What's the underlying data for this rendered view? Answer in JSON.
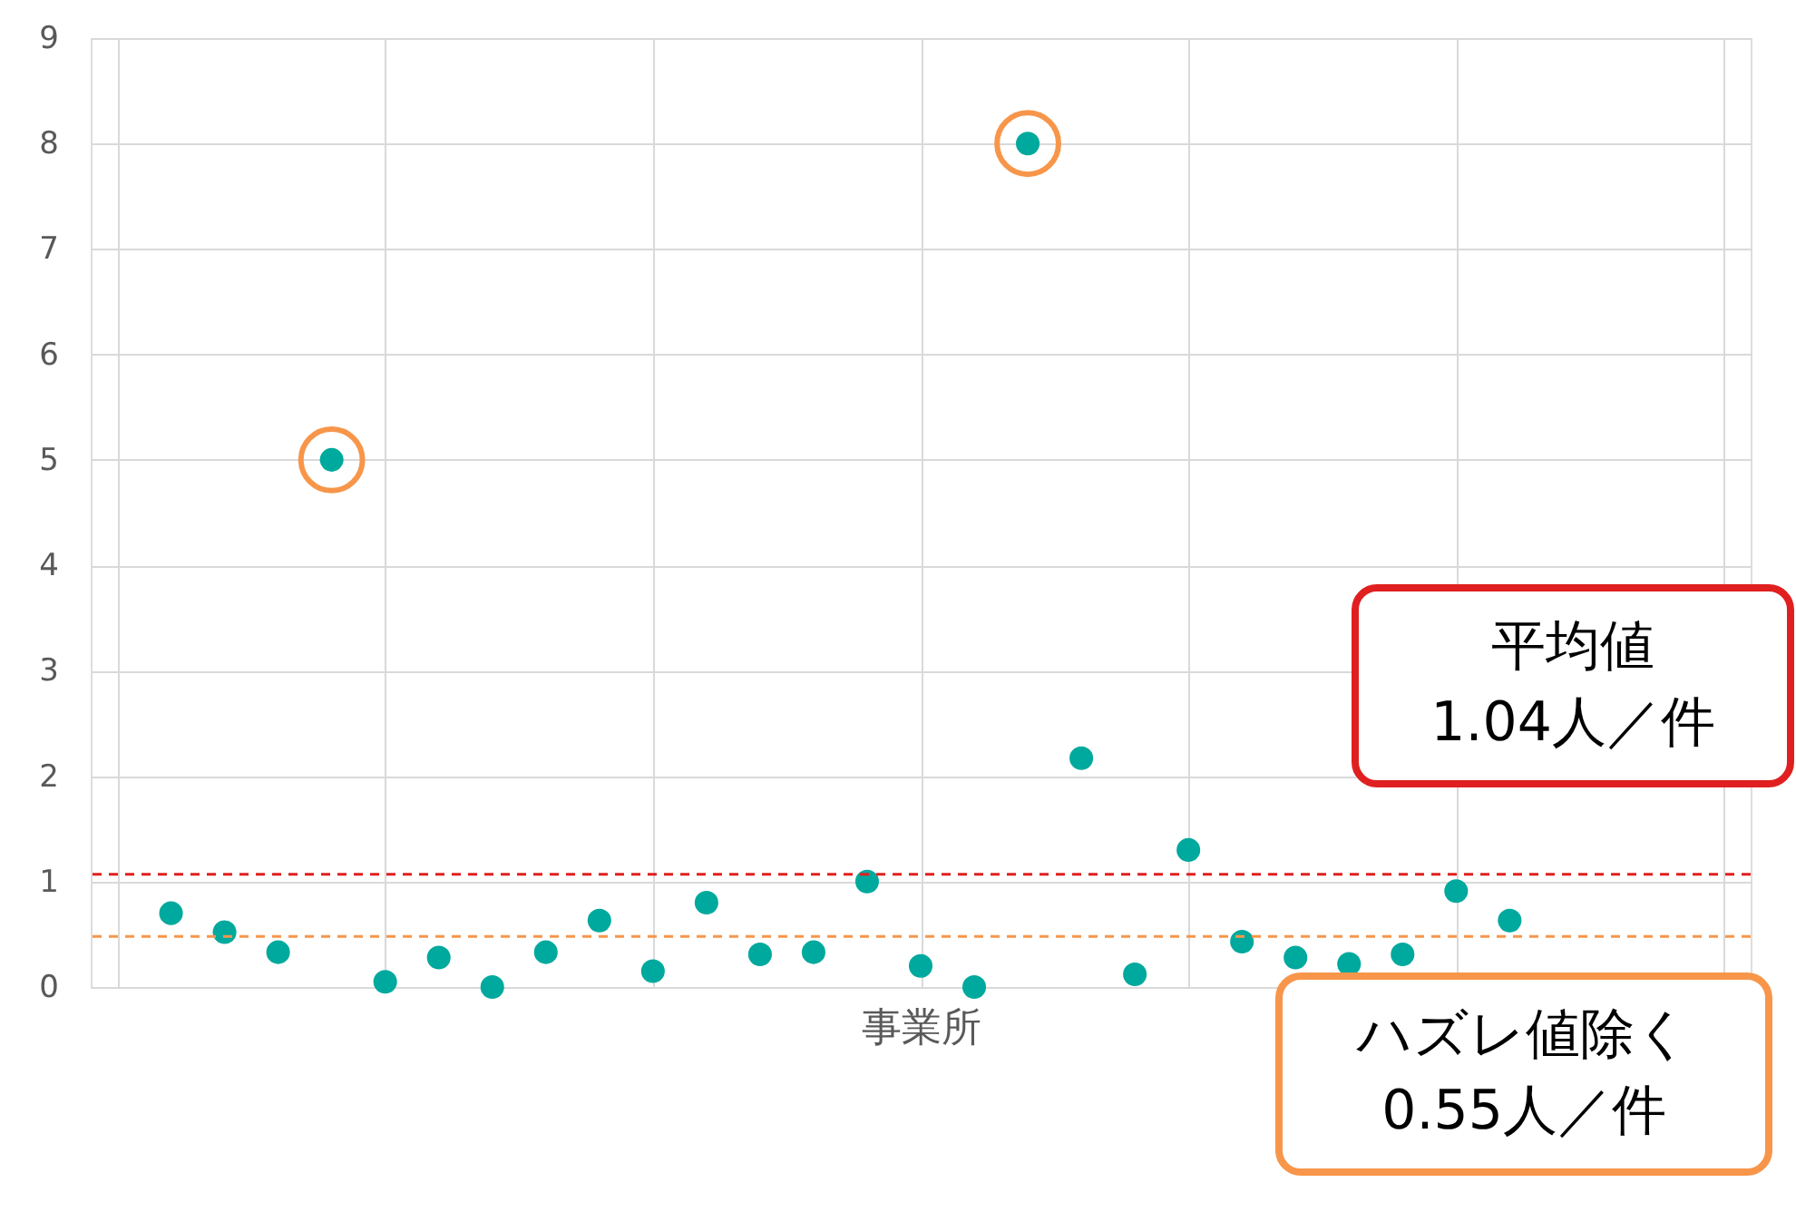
{
  "chart_data": {
    "type": "scatter",
    "xlabel": "事業所",
    "categories": [
      null,
      null,
      null,
      null,
      null,
      null,
      null,
      null,
      null,
      null,
      null,
      null,
      null,
      null,
      null,
      null,
      null,
      null,
      null,
      null,
      null,
      null,
      null,
      null,
      null,
      null,
      null,
      null,
      null,
      null,
      null
    ],
    "series": [
      {
        "color": "#00a99d",
        "values": [
          null,
          0.7,
          0.52,
          0.33,
          5.0,
          0.05,
          0.28,
          0.0,
          0.33,
          0.63,
          0.15,
          0.8,
          0.31,
          0.33,
          1.0,
          0.2,
          0.0,
          8.0,
          2.17,
          0.12,
          1.3,
          0.43,
          0.28,
          0.22,
          0.31,
          0.91,
          0.63,
          null,
          null,
          null,
          null
        ]
      },
      {
        "color": "#f7964a",
        "values": [
          null,
          null,
          null,
          null,
          5.0,
          null,
          null,
          null,
          null,
          null,
          null,
          null,
          null,
          null,
          null,
          null,
          null,
          8.0,
          null,
          null,
          null,
          null,
          null,
          null,
          null,
          null,
          null,
          null,
          null,
          null,
          null
        ]
      }
    ],
    "ylim": [
      0,
      9
    ],
    "yticks": [
      0,
      1,
      2,
      3,
      4,
      5,
      6,
      7,
      8,
      9
    ],
    "tick_labels": "y",
    "grid": true,
    "marker": "circle",
    "ref_lines": [
      {
        "axis": "y",
        "value": 1.07,
        "color": "#e02020",
        "line_style": "dashed"
      },
      {
        "axis": "y",
        "value": 0.48,
        "color": "#f7964a",
        "line_style": "dashed"
      }
    ],
    "annotations": [
      "平均値\n1.04人／件",
      "ハズレ値除く\n0.55人／件"
    ]
  }
}
